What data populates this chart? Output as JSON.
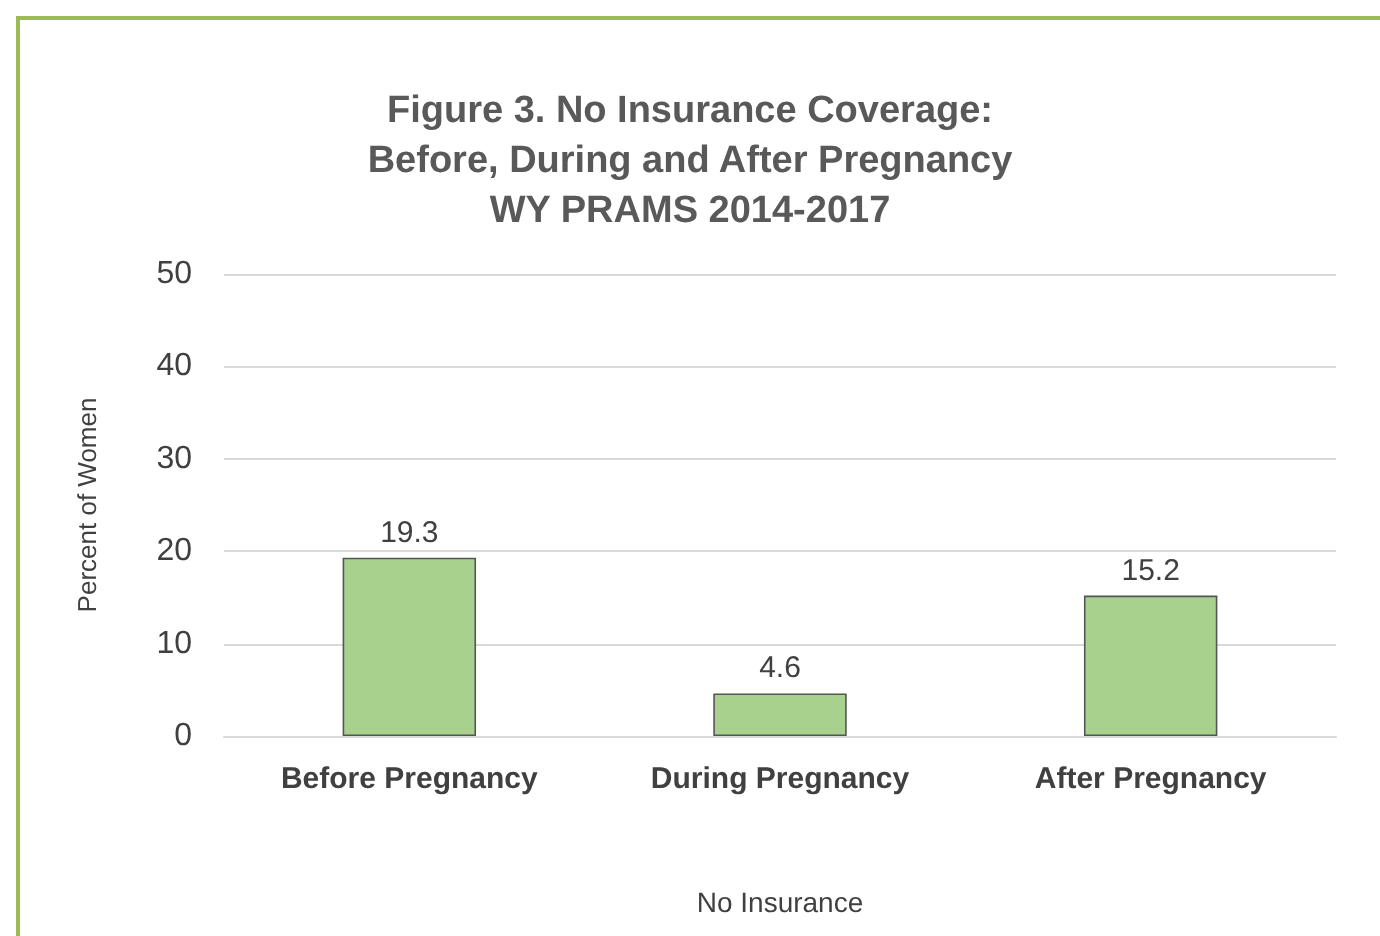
{
  "chart_data": {
    "type": "bar",
    "title": "Figure 3. No Insurance Coverage:\nBefore, During and After Pregnancy\nWY PRAMS 2014-2017",
    "xlabel": "No Insurance",
    "ylabel": "Percent of Women",
    "categories": [
      "Before Pregnancy",
      "During Pregnancy",
      "After Pregnancy"
    ],
    "values": [
      19.3,
      4.6,
      15.2
    ],
    "color": "#a9d18e",
    "ylim": [
      0,
      50
    ],
    "yticks": [
      0,
      10,
      20,
      30,
      40,
      50
    ],
    "grid": "y",
    "data_labels": true
  }
}
